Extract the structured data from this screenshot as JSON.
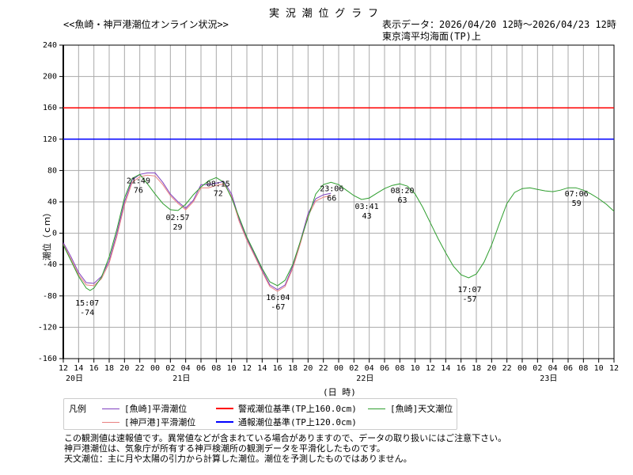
{
  "header": {
    "title": "実 況 潮 位 グ ラ フ",
    "subtitle": "<<魚崎・神戸港潮位オンライン状況>>",
    "range": "表示データ：2026/04/20 12時～2026/04/23 12時",
    "datum": "東京湾平均海面(TP)上"
  },
  "chart_data": {
    "type": "line",
    "ylabel": "潮位（ｃｍ）",
    "xlabel": "(日 時)",
    "ylim": [
      -160,
      240
    ],
    "yticks": [
      240,
      200,
      160,
      120,
      80,
      40,
      0,
      -40,
      -80,
      -120,
      -160
    ],
    "xlim_hours_from_start": [
      0,
      72
    ],
    "x_start": "2026/04/20 12時",
    "xtick_labels": [
      "12",
      "14",
      "16",
      "18",
      "20",
      "22",
      "00",
      "02",
      "04",
      "06",
      "08",
      "10",
      "12",
      "14",
      "16",
      "18",
      "20",
      "22",
      "00",
      "02",
      "04",
      "06",
      "08",
      "10",
      "12",
      "14",
      "16",
      "18",
      "20",
      "22",
      "00",
      "02",
      "04",
      "06",
      "08",
      "10",
      "12"
    ],
    "day_labels": [
      {
        "hour": 0,
        "label": "20日"
      },
      {
        "hour": 14,
        "label": "21日"
      },
      {
        "hour": 38,
        "label": "22日"
      },
      {
        "hour": 62,
        "label": "23日"
      }
    ],
    "grid": true,
    "thresholds": [
      {
        "name": "警戒潮位基準(TP上160.0cm)",
        "value": 160,
        "color": "#ff0000"
      },
      {
        "name": "通報潮位基準(TP上120.0cm)",
        "value": 120,
        "color": "#0000ff"
      }
    ],
    "series": [
      {
        "name": "[魚崎]平滑潮位",
        "color": "#7f3fbf",
        "x_hours": [
          0,
          1,
          2,
          3,
          4,
          5,
          6,
          7,
          8,
          9,
          10,
          11,
          12,
          13,
          14,
          15,
          16,
          17,
          18,
          19,
          20,
          21,
          22,
          23,
          24,
          25,
          26,
          27,
          28,
          29,
          30,
          31,
          32,
          33,
          34,
          35
        ],
        "values": [
          -12,
          -30,
          -50,
          -63,
          -64,
          -55,
          -35,
          0,
          40,
          68,
          75,
          77,
          77,
          65,
          50,
          40,
          32,
          42,
          62,
          62,
          64,
          66,
          50,
          18,
          -7,
          -27,
          -47,
          -66,
          -72,
          -66,
          -42,
          -10,
          25,
          44,
          49,
          51
        ]
      },
      {
        "name": "[神戸港]平滑潮位",
        "color": "#e88080",
        "x_hours": [
          0,
          1,
          2,
          3,
          4,
          5,
          6,
          7,
          8,
          9,
          10,
          11,
          12,
          13,
          14,
          15,
          16,
          17,
          18,
          19,
          20,
          21,
          22,
          23,
          24,
          25,
          26,
          27,
          28,
          29,
          30,
          31,
          32,
          33,
          34,
          35
        ],
        "values": [
          -14,
          -33,
          -53,
          -66,
          -67,
          -58,
          -38,
          -4,
          36,
          65,
          72,
          74,
          73,
          62,
          48,
          38,
          30,
          40,
          58,
          58,
          61,
          63,
          47,
          15,
          -9,
          -29,
          -49,
          -68,
          -74,
          -68,
          -45,
          -13,
          22,
          41,
          46,
          48
        ]
      },
      {
        "name": "[魚崎]天文潮位",
        "color": "#2e9e2e",
        "x_hours": [
          0,
          1,
          2,
          3,
          3.5,
          4,
          5,
          6,
          7,
          8,
          9,
          10,
          11,
          12,
          13,
          14,
          15,
          16,
          17,
          18,
          19,
          20,
          21,
          22,
          23,
          24,
          25,
          26,
          27,
          28,
          29,
          30,
          31,
          32,
          33,
          34,
          35,
          36,
          37,
          38,
          39,
          40,
          41,
          42,
          43,
          44,
          45,
          46,
          47,
          48,
          49,
          50,
          51,
          52,
          53,
          54,
          55,
          56,
          57,
          58,
          59,
          60,
          61,
          62,
          63,
          64,
          65,
          66,
          67,
          68,
          69,
          70,
          71,
          72
        ],
        "values": [
          -15,
          -35,
          -55,
          -70,
          -73,
          -70,
          -56,
          -30,
          5,
          45,
          70,
          75,
          63,
          50,
          38,
          30,
          29,
          37,
          49,
          59,
          67,
          71,
          65,
          45,
          20,
          -5,
          -25,
          -45,
          -62,
          -67,
          -60,
          -40,
          -10,
          20,
          50,
          62,
          65,
          62,
          55,
          48,
          43,
          45,
          51,
          57,
          61,
          63,
          60,
          50,
          33,
          13,
          -7,
          -25,
          -42,
          -53,
          -57,
          -52,
          -37,
          -15,
          12,
          38,
          52,
          57,
          58,
          56,
          54,
          53,
          55,
          58,
          58,
          55,
          50,
          44,
          37,
          28
        ]
      }
    ],
    "annotations": [
      {
        "time": "15:07",
        "value": -74,
        "hour": 3.12,
        "pos": "below"
      },
      {
        "time": "21:49",
        "value": 76,
        "hour": 9.82,
        "pos": "below"
      },
      {
        "time": "02:57",
        "value": 29,
        "hour": 14.95,
        "pos": "below"
      },
      {
        "time": "08:15",
        "value": 72,
        "hour": 20.25,
        "pos": "below"
      },
      {
        "time": "16:04",
        "value": -67,
        "hour": 28.07,
        "pos": "below"
      },
      {
        "time": "23:06",
        "value": 66,
        "hour": 35.1,
        "pos": "below"
      },
      {
        "time": "03:41",
        "value": 43,
        "hour": 39.68,
        "pos": "below"
      },
      {
        "time": "08:20",
        "value": 63,
        "hour": 44.33,
        "pos": "below"
      },
      {
        "time": "17:07",
        "value": -57,
        "hour": 53.12,
        "pos": "below"
      },
      {
        "time": "07:06",
        "value": 59,
        "hour": 67.1,
        "pos": "below"
      }
    ]
  },
  "legend": {
    "title": "凡例",
    "items": [
      {
        "label": "[魚崎]平滑潮位",
        "color": "#7f3fbf"
      },
      {
        "label": "[神戸港]平滑潮位",
        "color": "#e88080"
      },
      {
        "label": "警戒潮位基準(TP上160.0cm)",
        "color": "#ff0000"
      },
      {
        "label": "通報潮位基準(TP上120.0cm)",
        "color": "#0000ff"
      },
      {
        "label": "[魚崎]天文潮位",
        "color": "#2e9e2e"
      }
    ]
  },
  "notes": [
    "この観測値は速報値です。異常値などが含まれている場合がありますので、データの取り扱いにはご注意下さい。",
    "神戸港潮位は、気象庁が所有する神戸検潮所の観測データを平滑化したものです。",
    "天文潮位：主に月や太陽の引力から計算した潮位。潮位を予測したものではありません。"
  ]
}
